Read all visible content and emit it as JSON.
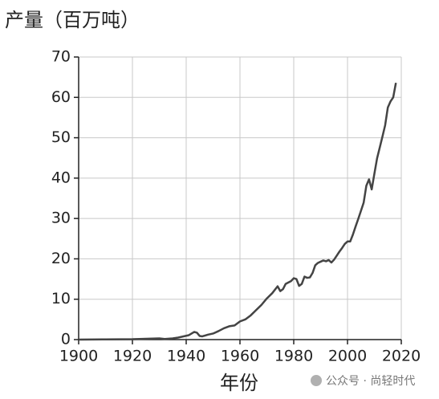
{
  "chart_data": {
    "type": "line",
    "ylabel": "产量（百万吨）",
    "xlabel": "年份",
    "watermark": "公众号 · 尚轻时代",
    "x": [
      1900,
      1910,
      1920,
      1925,
      1930,
      1932,
      1935,
      1937,
      1939,
      1941,
      1943,
      1944,
      1945,
      1946,
      1948,
      1950,
      1952,
      1954,
      1956,
      1958,
      1960,
      1962,
      1964,
      1966,
      1968,
      1970,
      1972,
      1974,
      1975,
      1976,
      1977,
      1979,
      1980,
      1981,
      1982,
      1983,
      1984,
      1985,
      1986,
      1987,
      1988,
      1989,
      1990,
      1991,
      1992,
      1993,
      1994,
      1995,
      1996,
      1997,
      1998,
      1999,
      2000,
      2001,
      2002,
      2003,
      2004,
      2005,
      2006,
      2007,
      2008,
      2009,
      2010,
      2011,
      2012,
      2013,
      2014,
      2015,
      2016,
      2017,
      2018
    ],
    "series": [
      {
        "name": "产量",
        "color": "#444444",
        "values": [
          0,
          0.05,
          0.1,
          0.2,
          0.3,
          0.15,
          0.3,
          0.5,
          0.8,
          1.1,
          1.9,
          1.7,
          0.9,
          0.8,
          1.2,
          1.5,
          2.1,
          2.8,
          3.3,
          3.5,
          4.5,
          5.0,
          6.0,
          7.3,
          8.6,
          10.2,
          11.5,
          13.2,
          12.0,
          12.5,
          13.8,
          14.5,
          15.2,
          15.0,
          13.3,
          13.8,
          15.6,
          15.3,
          15.4,
          16.5,
          18.4,
          19.0,
          19.3,
          19.6,
          19.4,
          19.7,
          19.1,
          19.8,
          20.8,
          21.8,
          22.7,
          23.7,
          24.3,
          24.3,
          26.0,
          28.0,
          29.9,
          31.9,
          33.9,
          38.1,
          39.7,
          37.2,
          41.1,
          44.9,
          47.6,
          50.3,
          53.1,
          57.5,
          59.0,
          60.0,
          63.6
        ]
      }
    ],
    "xlim": [
      1900,
      2020
    ],
    "xticks": [
      1900,
      1920,
      1940,
      1960,
      1980,
      2000,
      2020
    ],
    "ylim": [
      0,
      70
    ],
    "yticks": [
      0,
      10,
      20,
      30,
      40,
      50,
      60,
      70
    ],
    "grid": true
  }
}
